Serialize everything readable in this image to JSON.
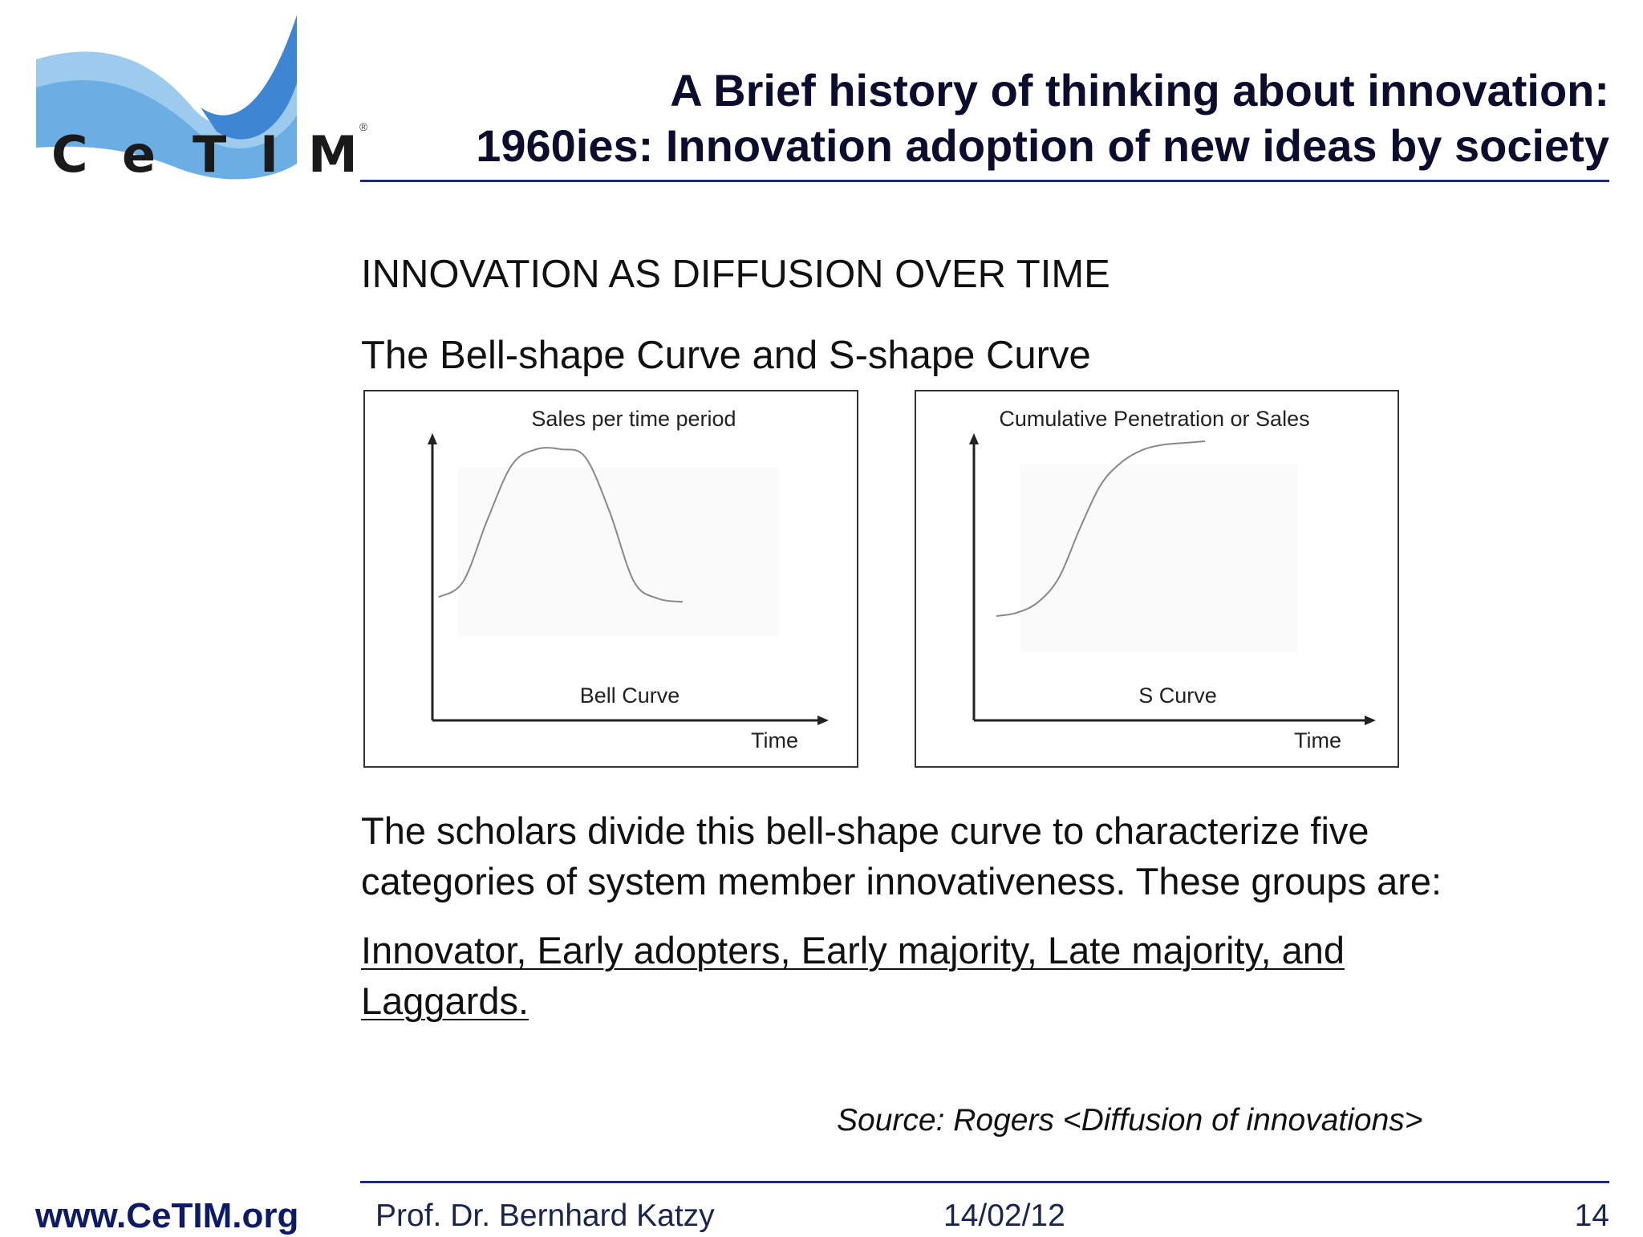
{
  "logo": {
    "letters": [
      "C",
      "e",
      "T",
      "I",
      "M"
    ],
    "registered": "®",
    "colors": {
      "light_wave": "#8ec3ea",
      "dark_wave": "#3d82cf",
      "mid_wave": "#5fa2de"
    }
  },
  "title": {
    "line1": "A Brief history of thinking about innovation:",
    "line2": "1960ies: Innovation adoption of new ideas by society"
  },
  "section_heading": "INNOVATION AS DIFFUSION OVER TIME",
  "subheading": "The Bell-shape Curve and S-shape Curve",
  "chart_data": [
    {
      "type": "line",
      "title": "Sales per time period",
      "xlabel": "Time",
      "ylabel": "",
      "curve_label": "Bell Curve",
      "x": [
        0,
        0.1,
        0.2,
        0.3,
        0.4,
        0.5,
        0.6,
        0.7,
        0.8,
        0.9,
        1
      ],
      "series": [
        {
          "values": [
            0.05,
            0.15,
            0.55,
            0.9,
            1.0,
            1.0,
            0.95,
            0.6,
            0.15,
            0.04,
            0.02
          ]
        }
      ]
    },
    {
      "type": "line",
      "title": "Cumulative Penetration or Sales",
      "xlabel": "Time",
      "ylabel": "",
      "curve_label": "S Curve",
      "x": [
        0,
        0.1,
        0.2,
        0.3,
        0.4,
        0.5,
        0.6,
        0.7,
        0.8,
        0.9,
        1
      ],
      "series": [
        {
          "values": [
            0.0,
            0.02,
            0.08,
            0.22,
            0.5,
            0.75,
            0.88,
            0.95,
            0.98,
            0.99,
            1.0
          ]
        }
      ]
    }
  ],
  "paragraph": {
    "line1": "The scholars divide this bell-shape curve to characterize five",
    "line2": "categories of system member innovativeness. These groups are:"
  },
  "groups": {
    "line1": "Innovator, Early adopters, Early majority, Late majority, and",
    "line2": "Laggards."
  },
  "source": "Source: Rogers <Diffusion of innovations>",
  "footer": {
    "website": "www.CeTIM.org",
    "author": "Prof. Dr. Bernhard Katzy",
    "date": "14/02/12",
    "page_number": "14"
  }
}
